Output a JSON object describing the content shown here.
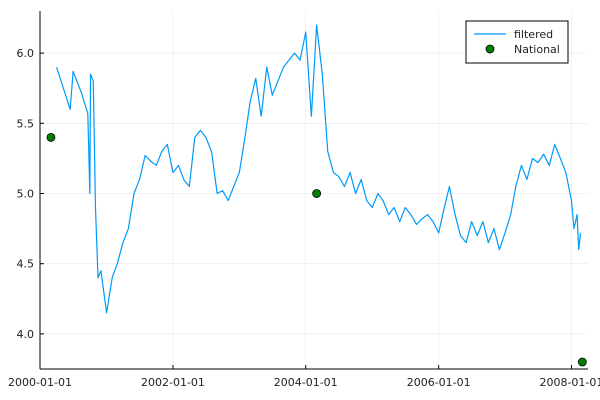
{
  "chart_data": {
    "type": "line",
    "title": "",
    "xlabel": "",
    "ylabel": "",
    "x_axis_type": "date",
    "xlim": [
      "2000-01-01",
      "2008-04-01"
    ],
    "ylim": [
      3.75,
      6.3
    ],
    "x_ticks": [
      "2000-01-01",
      "2002-01-01",
      "2004-01-01",
      "2006-01-01",
      "2008-01-01"
    ],
    "y_ticks": [
      4.0,
      4.5,
      5.0,
      5.5,
      6.0
    ],
    "y_tick_labels": [
      "4.0",
      "4.5",
      "5.0",
      "5.5",
      "6.0"
    ],
    "grid": true,
    "legend_position": "top-right",
    "series": [
      {
        "name": "filtered",
        "kind": "line",
        "color": "#009af9",
        "points": [
          [
            "2000-04-01",
            5.9
          ],
          [
            "2000-05-01",
            5.78
          ],
          [
            "2000-06-15",
            5.6
          ],
          [
            "2000-07-01",
            5.87
          ],
          [
            "2000-08-15",
            5.72
          ],
          [
            "2000-09-20",
            5.57
          ],
          [
            "2000-10-01",
            5.0
          ],
          [
            "2000-10-05",
            5.85
          ],
          [
            "2000-10-20",
            5.8
          ],
          [
            "2000-11-01",
            4.9
          ],
          [
            "2000-11-15",
            4.4
          ],
          [
            "2000-12-01",
            4.45
          ],
          [
            "2001-01-01",
            4.15
          ],
          [
            "2001-02-01",
            4.4
          ],
          [
            "2001-03-01",
            4.5
          ],
          [
            "2001-04-01",
            4.65
          ],
          [
            "2001-05-01",
            4.75
          ],
          [
            "2001-06-01",
            5.0
          ],
          [
            "2001-07-01",
            5.1
          ],
          [
            "2001-08-01",
            5.27
          ],
          [
            "2001-09-01",
            5.23
          ],
          [
            "2001-10-01",
            5.2
          ],
          [
            "2001-11-01",
            5.3
          ],
          [
            "2001-12-01",
            5.35
          ],
          [
            "2002-01-01",
            5.15
          ],
          [
            "2002-02-01",
            5.2
          ],
          [
            "2002-03-01",
            5.1
          ],
          [
            "2002-04-01",
            5.05
          ],
          [
            "2002-05-01",
            5.4
          ],
          [
            "2002-06-01",
            5.45
          ],
          [
            "2002-07-01",
            5.4
          ],
          [
            "2002-08-01",
            5.3
          ],
          [
            "2002-09-01",
            5.0
          ],
          [
            "2002-10-01",
            5.02
          ],
          [
            "2002-11-01",
            4.95
          ],
          [
            "2002-12-01",
            5.05
          ],
          [
            "2003-01-01",
            5.15
          ],
          [
            "2003-02-01",
            5.4
          ],
          [
            "2003-03-01",
            5.65
          ],
          [
            "2003-04-01",
            5.82
          ],
          [
            "2003-05-01",
            5.55
          ],
          [
            "2003-06-01",
            5.9
          ],
          [
            "2003-07-01",
            5.7
          ],
          [
            "2003-08-01",
            5.8
          ],
          [
            "2003-09-01",
            5.9
          ],
          [
            "2003-10-01",
            5.95
          ],
          [
            "2003-11-01",
            6.0
          ],
          [
            "2003-12-01",
            5.95
          ],
          [
            "2004-01-01",
            6.15
          ],
          [
            "2004-02-01",
            5.55
          ],
          [
            "2004-03-01",
            6.2
          ],
          [
            "2004-04-01",
            5.85
          ],
          [
            "2004-05-01",
            5.3
          ],
          [
            "2004-06-01",
            5.15
          ],
          [
            "2004-07-01",
            5.12
          ],
          [
            "2004-08-01",
            5.05
          ],
          [
            "2004-09-01",
            5.15
          ],
          [
            "2004-10-01",
            5.0
          ],
          [
            "2004-11-01",
            5.1
          ],
          [
            "2004-12-01",
            4.95
          ],
          [
            "2005-01-01",
            4.9
          ],
          [
            "2005-02-01",
            5.0
          ],
          [
            "2005-03-01",
            4.95
          ],
          [
            "2005-04-01",
            4.85
          ],
          [
            "2005-05-01",
            4.9
          ],
          [
            "2005-06-01",
            4.8
          ],
          [
            "2005-07-01",
            4.9
          ],
          [
            "2005-08-01",
            4.85
          ],
          [
            "2005-09-01",
            4.78
          ],
          [
            "2005-10-01",
            4.82
          ],
          [
            "2005-11-01",
            4.85
          ],
          [
            "2005-12-01",
            4.8
          ],
          [
            "2006-01-01",
            4.72
          ],
          [
            "2006-02-01",
            4.9
          ],
          [
            "2006-03-01",
            5.05
          ],
          [
            "2006-04-01",
            4.85
          ],
          [
            "2006-05-01",
            4.7
          ],
          [
            "2006-06-01",
            4.65
          ],
          [
            "2006-07-01",
            4.8
          ],
          [
            "2006-08-01",
            4.7
          ],
          [
            "2006-09-01",
            4.8
          ],
          [
            "2006-10-01",
            4.65
          ],
          [
            "2006-11-01",
            4.75
          ],
          [
            "2006-12-01",
            4.6
          ],
          [
            "2007-01-01",
            4.72
          ],
          [
            "2007-02-01",
            4.85
          ],
          [
            "2007-03-01",
            5.05
          ],
          [
            "2007-04-01",
            5.2
          ],
          [
            "2007-05-01",
            5.1
          ],
          [
            "2007-06-01",
            5.25
          ],
          [
            "2007-07-01",
            5.22
          ],
          [
            "2007-08-01",
            5.28
          ],
          [
            "2007-09-01",
            5.2
          ],
          [
            "2007-10-01",
            5.35
          ],
          [
            "2007-11-01",
            5.25
          ],
          [
            "2007-12-01",
            5.15
          ],
          [
            "2008-01-01",
            4.95
          ],
          [
            "2008-01-15",
            4.75
          ],
          [
            "2008-02-01",
            4.85
          ],
          [
            "2008-02-10",
            4.6
          ],
          [
            "2008-02-20",
            4.72
          ]
        ]
      },
      {
        "name": "National",
        "kind": "scatter",
        "color": "#008000",
        "points": [
          [
            "2000-03-01",
            5.4
          ],
          [
            "2004-03-01",
            5.0
          ],
          [
            "2008-03-01",
            3.8
          ]
        ]
      }
    ]
  }
}
